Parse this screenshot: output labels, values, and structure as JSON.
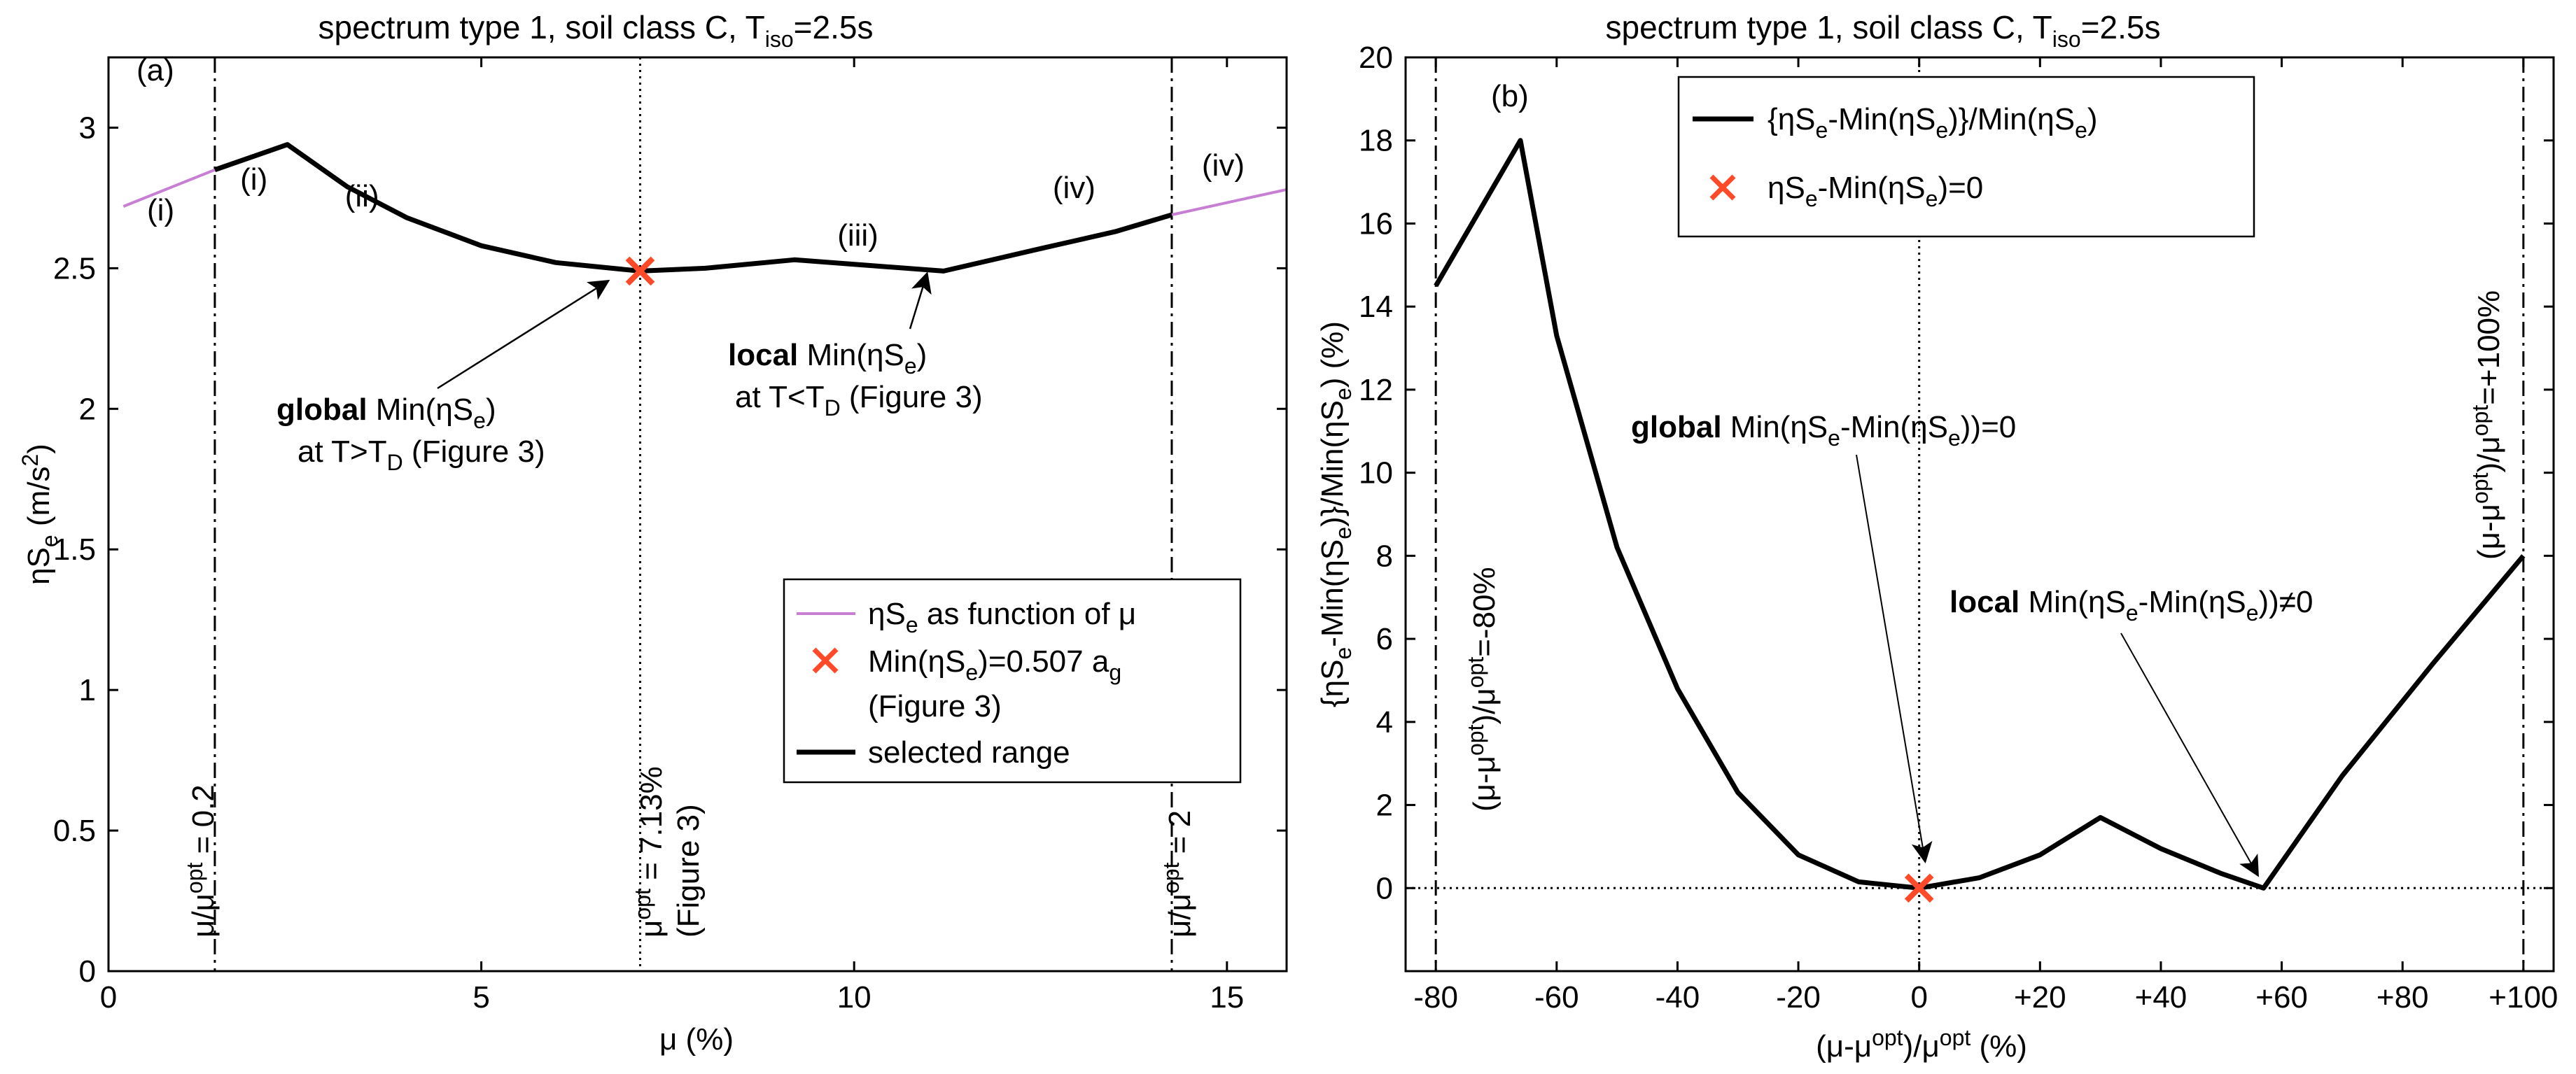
{
  "chart_data": [
    {
      "type": "line",
      "panel_label": "(a)",
      "title": "spectrum type 1, soil class C, T",
      "title_sub": "iso",
      "title_tail": "=2.5s",
      "xlabel": "μ  (%)",
      "ylabel_main": "ηS",
      "ylabel_sub": "e",
      "ylabel_tail": "  (m/s",
      "ylabel_sup": "2",
      "ylabel_end": ")",
      "xlim": [
        0,
        15.8
      ],
      "ylim": [
        0,
        3.25
      ],
      "xticks": [
        0,
        5,
        10,
        15
      ],
      "yticks": [
        0,
        0.5,
        1,
        1.5,
        2,
        2.5,
        3
      ],
      "xtick_labels": [
        "0",
        "5",
        "10",
        "15"
      ],
      "ytick_labels": [
        "0",
        "0.5",
        "1",
        "1.5",
        "2",
        "2.5",
        "3"
      ],
      "series": [
        {
          "name": "ηSe as function of μ",
          "color": "#c77fd4",
          "x": [
            0.2,
            1.426
          ],
          "y": [
            2.72,
            2.85
          ]
        },
        {
          "name": "ηSe as function of μ",
          "color": "#c77fd4",
          "x": [
            14.26,
            15.8
          ],
          "y": [
            2.69,
            2.78
          ]
        },
        {
          "name": "selected range",
          "color": "#000000",
          "x": [
            1.426,
            2.4,
            3.2,
            4.0,
            5.0,
            6.0,
            7.13,
            8.0,
            9.2,
            10.2,
            11.2,
            12.5,
            13.5,
            14.26
          ],
          "y": [
            2.85,
            2.94,
            2.79,
            2.68,
            2.58,
            2.52,
            2.49,
            2.5,
            2.53,
            2.51,
            2.49,
            2.57,
            2.63,
            2.69
          ]
        }
      ],
      "vlines": [
        {
          "x": 1.426,
          "style": "dashdot",
          "label": "μ/μ",
          "label_sup": "opt",
          "label_tail": " = 0.2"
        },
        {
          "x": 7.13,
          "style": "dotted",
          "label": "μ",
          "label_sup": "opt",
          "label_tail": " = 7.13%",
          "label2": "(Figure 3)"
        },
        {
          "x": 14.26,
          "style": "dashdot",
          "label": "μ/μ",
          "label_sup": "opt",
          "label_tail": " = 2"
        }
      ],
      "marker": {
        "x": 7.13,
        "y": 2.49,
        "color": "#ff4a2a"
      },
      "regions": [
        {
          "text": "(i)",
          "x": 0.7,
          "y": 2.67
        },
        {
          "text": "(i)",
          "x": 1.95,
          "y": 2.78
        },
        {
          "text": "(ii)",
          "x": 3.4,
          "y": 2.72
        },
        {
          "text": "(iii)",
          "x": 10.05,
          "y": 2.58
        },
        {
          "text": "(iv)",
          "x": 12.95,
          "y": 2.75
        },
        {
          "text": "(iv)",
          "x": 14.95,
          "y": 2.83
        }
      ],
      "annotations": [
        {
          "bold": "global",
          "text": " Min(ηS",
          "sub": "e",
          "tail": ")",
          "line2": "at T>T",
          "line2_sub": "D",
          "line2_tail": " (Figure 3)"
        },
        {
          "bold": "local",
          "text": " Min(ηS",
          "sub": "e",
          "tail": ")",
          "line2": "at T<T",
          "line2_sub": "D",
          "line2_tail": " (Figure 3)"
        }
      ],
      "legend": {
        "position": "lower-right",
        "entries": [
          {
            "text": "ηS",
            "sub": "e",
            "tail": " as function of μ"
          },
          {
            "text": "Min(ηS",
            "sub": "e",
            "tail": ")=0.507 a",
            "sub2": "g",
            "line2": "(Figure 3)"
          },
          {
            "text": "selected range"
          }
        ]
      }
    },
    {
      "type": "line",
      "panel_label": "(b)",
      "title": "spectrum type 1, soil class C, T",
      "title_sub": "iso",
      "title_tail": "=2.5s",
      "xlabel_a": "(μ-μ",
      "xlabel_sup1": "opt",
      "xlabel_b": ")/μ",
      "xlabel_sup2": "opt",
      "xlabel_c": "  (%)",
      "ylabel_a": "{ηS",
      "ylabel_sub1": "e",
      "ylabel_b": "-Min(ηS",
      "ylabel_sub2": "e",
      "ylabel_c": ")}/Min(ηS",
      "ylabel_sub3": "e",
      "ylabel_d": ")  (%)",
      "xlim": [
        -85,
        105
      ],
      "ylim": [
        -2,
        20
      ],
      "xticks": [
        -80,
        -60,
        -40,
        -20,
        0,
        20,
        40,
        60,
        80,
        100
      ],
      "xtick_labels": [
        "-80",
        "-60",
        "-40",
        "-20",
        "0",
        "+20",
        "+40",
        "+60",
        "+80",
        "+100"
      ],
      "yticks": [
        0,
        2,
        4,
        6,
        8,
        10,
        12,
        14,
        16,
        18,
        20
      ],
      "ytick_labels": [
        "0",
        "2",
        "4",
        "6",
        "8",
        "10",
        "12",
        "14",
        "16",
        "18",
        "20"
      ],
      "series": [
        {
          "name": "{ηSe-Min(ηSe)}/Min(ηSe)",
          "color": "#000000",
          "x": [
            -80,
            -66,
            -60,
            -50,
            -40,
            -30,
            -20,
            -10,
            0,
            10,
            20,
            30,
            40,
            50,
            57,
            70,
            85,
            100
          ],
          "y": [
            14.5,
            18.0,
            13.3,
            8.2,
            4.8,
            2.3,
            0.8,
            0.15,
            0,
            0.25,
            0.8,
            1.7,
            0.95,
            0.35,
            0,
            2.7,
            5.4,
            8.0
          ]
        }
      ],
      "vlines": [
        {
          "x": -80,
          "style": "dashdot",
          "label": "(μ-μ",
          "label_sup": "opt",
          "label_mid": ")/μ",
          "label_sup2": "opt",
          "label_tail": "=-80%"
        },
        {
          "x": 0,
          "style": "dotted"
        },
        {
          "x": 100,
          "style": "dashdot",
          "label": "(μ-μ",
          "label_sup": "opt",
          "label_mid": ")/μ",
          "label_sup2": "opt",
          "label_tail": "=+100%"
        }
      ],
      "hline": {
        "y": 0,
        "style": "dotted"
      },
      "marker": {
        "x": 0,
        "y": 0,
        "color": "#ff4a2a"
      },
      "annotations": [
        {
          "bold": "global",
          "text": " Min(ηS",
          "sub": "e",
          "mid": "-Min(ηS",
          "sub2": "e",
          "tail": "))=0"
        },
        {
          "bold": "local",
          "text": " Min(ηS",
          "sub": "e",
          "mid": "-Min(ηS",
          "sub2": "e",
          "tail": "))≠0"
        }
      ],
      "legend": {
        "position": "top",
        "entries": [
          {
            "text": "{ηS",
            "sub": "e",
            "mid": "-Min(ηS",
            "sub2": "e",
            "mid2": ")}/Min(ηS",
            "sub3": "e",
            "tail": ")"
          },
          {
            "text": "ηS",
            "sub": "e",
            "mid": "-Min(ηS",
            "sub2": "e",
            "tail": ")=0"
          }
        ]
      }
    }
  ]
}
